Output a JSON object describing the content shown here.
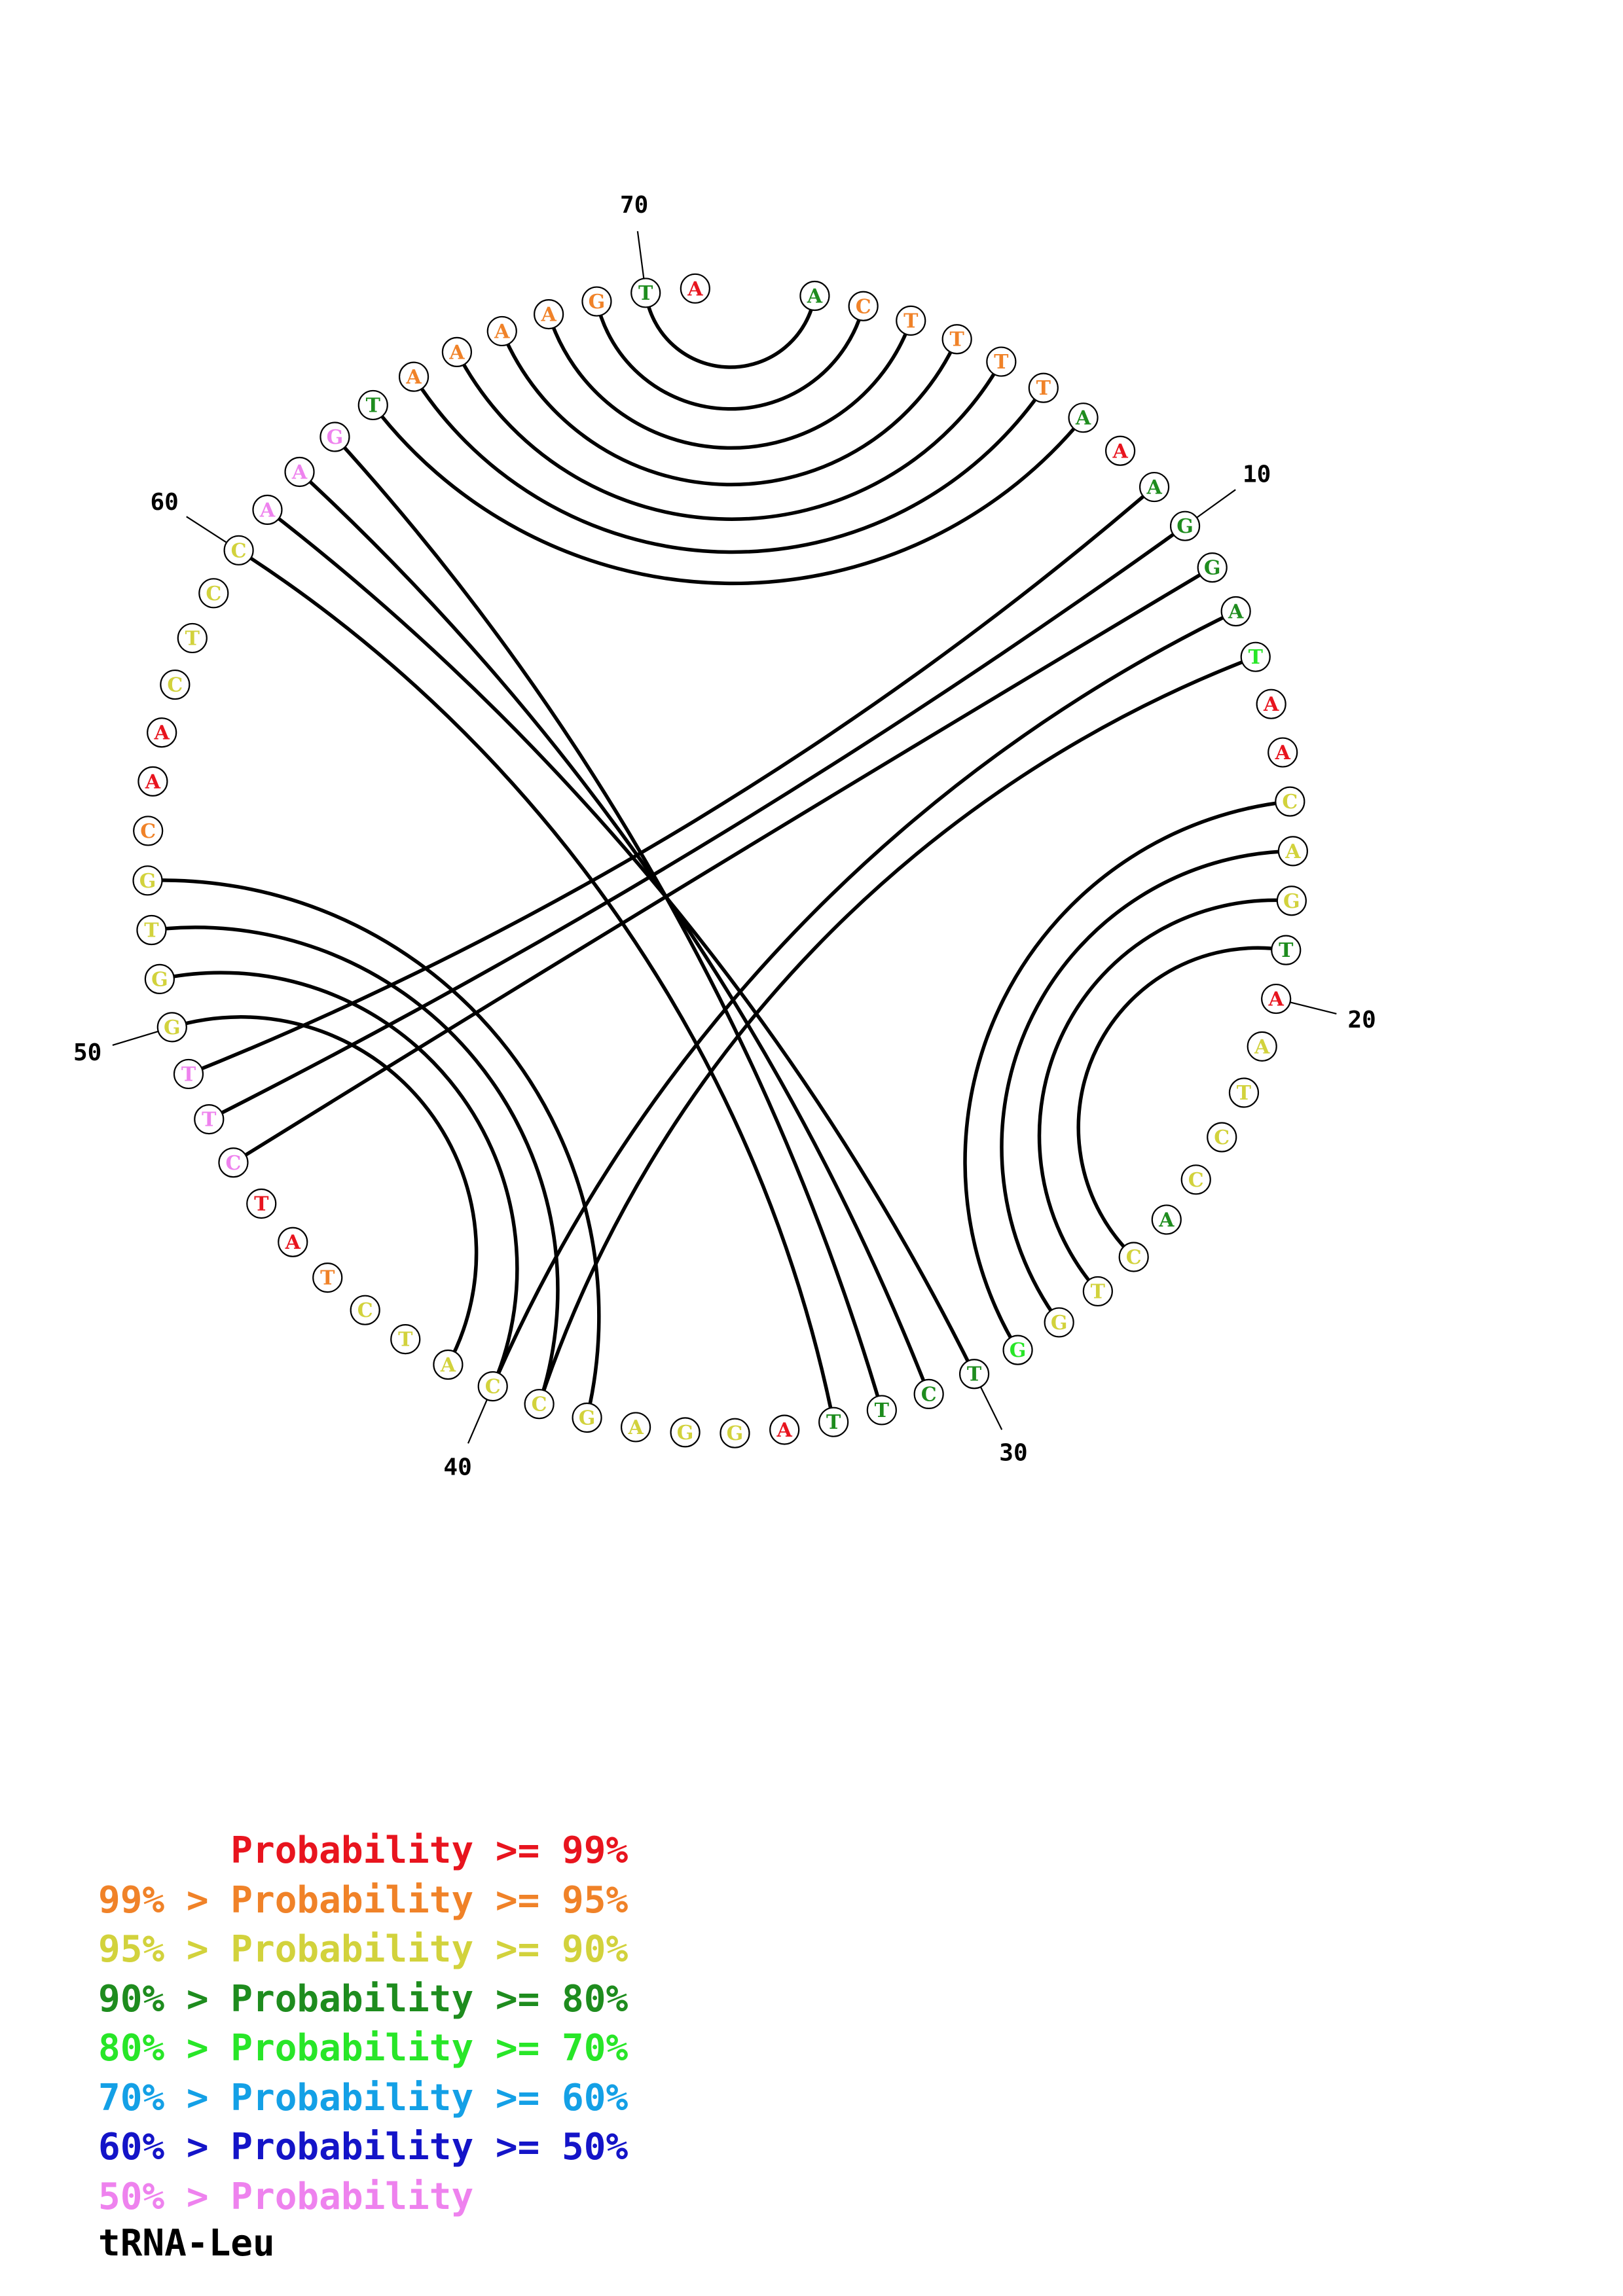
{
  "title": "tRNA-Leu",
  "colors": {
    "red": "#e8141e",
    "orange": "#f08228",
    "yellow": "#d2d23c",
    "darkgreen": "#1e8c1e",
    "green": "#28e628",
    "skyblue": "#14a0e6",
    "blue": "#1414c8",
    "pink": "#ee82ee"
  },
  "sequence": [
    {
      "i": 1,
      "base": "A",
      "color": "darkgreen"
    },
    {
      "i": 2,
      "base": "C",
      "color": "orange"
    },
    {
      "i": 3,
      "base": "T",
      "color": "orange"
    },
    {
      "i": 4,
      "base": "T",
      "color": "orange"
    },
    {
      "i": 5,
      "base": "T",
      "color": "orange"
    },
    {
      "i": 6,
      "base": "T",
      "color": "orange"
    },
    {
      "i": 7,
      "base": "A",
      "color": "darkgreen"
    },
    {
      "i": 8,
      "base": "A",
      "color": "red"
    },
    {
      "i": 9,
      "base": "A",
      "color": "darkgreen"
    },
    {
      "i": 10,
      "base": "G",
      "color": "darkgreen"
    },
    {
      "i": 11,
      "base": "G",
      "color": "darkgreen"
    },
    {
      "i": 12,
      "base": "A",
      "color": "darkgreen"
    },
    {
      "i": 13,
      "base": "T",
      "color": "green"
    },
    {
      "i": 14,
      "base": "A",
      "color": "red"
    },
    {
      "i": 15,
      "base": "A",
      "color": "red"
    },
    {
      "i": 16,
      "base": "C",
      "color": "yellow"
    },
    {
      "i": 17,
      "base": "A",
      "color": "yellow"
    },
    {
      "i": 18,
      "base": "G",
      "color": "yellow"
    },
    {
      "i": 19,
      "base": "T",
      "color": "darkgreen"
    },
    {
      "i": 20,
      "base": "A",
      "color": "red"
    },
    {
      "i": 21,
      "base": "A",
      "color": "yellow"
    },
    {
      "i": 22,
      "base": "T",
      "color": "yellow"
    },
    {
      "i": 23,
      "base": "C",
      "color": "yellow"
    },
    {
      "i": 24,
      "base": "C",
      "color": "yellow"
    },
    {
      "i": 25,
      "base": "A",
      "color": "darkgreen"
    },
    {
      "i": 26,
      "base": "C",
      "color": "yellow"
    },
    {
      "i": 27,
      "base": "T",
      "color": "yellow"
    },
    {
      "i": 28,
      "base": "G",
      "color": "yellow"
    },
    {
      "i": 29,
      "base": "G",
      "color": "green"
    },
    {
      "i": 30,
      "base": "T",
      "color": "darkgreen"
    },
    {
      "i": 31,
      "base": "C",
      "color": "darkgreen"
    },
    {
      "i": 32,
      "base": "T",
      "color": "darkgreen"
    },
    {
      "i": 33,
      "base": "T",
      "color": "darkgreen"
    },
    {
      "i": 34,
      "base": "A",
      "color": "red"
    },
    {
      "i": 35,
      "base": "G",
      "color": "yellow"
    },
    {
      "i": 36,
      "base": "G",
      "color": "yellow"
    },
    {
      "i": 37,
      "base": "A",
      "color": "yellow"
    },
    {
      "i": 38,
      "base": "G",
      "color": "yellow"
    },
    {
      "i": 39,
      "base": "C",
      "color": "yellow"
    },
    {
      "i": 40,
      "base": "C",
      "color": "yellow"
    },
    {
      "i": 41,
      "base": "A",
      "color": "yellow"
    },
    {
      "i": 42,
      "base": "T",
      "color": "yellow"
    },
    {
      "i": 43,
      "base": "C",
      "color": "yellow"
    },
    {
      "i": 44,
      "base": "T",
      "color": "orange"
    },
    {
      "i": 45,
      "base": "A",
      "color": "red"
    },
    {
      "i": 46,
      "base": "T",
      "color": "red"
    },
    {
      "i": 47,
      "base": "C",
      "color": "pink"
    },
    {
      "i": 48,
      "base": "T",
      "color": "pink"
    },
    {
      "i": 49,
      "base": "T",
      "color": "pink"
    },
    {
      "i": 50,
      "base": "G",
      "color": "yellow"
    },
    {
      "i": 51,
      "base": "G",
      "color": "yellow"
    },
    {
      "i": 52,
      "base": "T",
      "color": "yellow"
    },
    {
      "i": 53,
      "base": "G",
      "color": "yellow"
    },
    {
      "i": 54,
      "base": "C",
      "color": "orange"
    },
    {
      "i": 55,
      "base": "A",
      "color": "red"
    },
    {
      "i": 56,
      "base": "A",
      "color": "red"
    },
    {
      "i": 57,
      "base": "C",
      "color": "yellow"
    },
    {
      "i": 58,
      "base": "T",
      "color": "yellow"
    },
    {
      "i": 59,
      "base": "C",
      "color": "yellow"
    },
    {
      "i": 60,
      "base": "C",
      "color": "yellow"
    },
    {
      "i": 61,
      "base": "A",
      "color": "pink"
    },
    {
      "i": 62,
      "base": "A",
      "color": "pink"
    },
    {
      "i": 63,
      "base": "G",
      "color": "pink"
    },
    {
      "i": 64,
      "base": "T",
      "color": "darkgreen"
    },
    {
      "i": 65,
      "base": "A",
      "color": "orange"
    },
    {
      "i": 66,
      "base": "A",
      "color": "orange"
    },
    {
      "i": 67,
      "base": "A",
      "color": "orange"
    },
    {
      "i": 68,
      "base": "A",
      "color": "orange"
    },
    {
      "i": 69,
      "base": "G",
      "color": "orange"
    },
    {
      "i": 70,
      "base": "T",
      "color": "darkgreen"
    },
    {
      "i": 71,
      "base": "A",
      "color": "red"
    }
  ],
  "pairs": [
    [
      1,
      70
    ],
    [
      2,
      69
    ],
    [
      3,
      68
    ],
    [
      4,
      67
    ],
    [
      5,
      66
    ],
    [
      6,
      65
    ],
    [
      7,
      64
    ],
    [
      9,
      49
    ],
    [
      10,
      48
    ],
    [
      11,
      47
    ],
    [
      12,
      40
    ],
    [
      13,
      39
    ],
    [
      16,
      29
    ],
    [
      17,
      28
    ],
    [
      18,
      27
    ],
    [
      19,
      26
    ],
    [
      30,
      61
    ],
    [
      31,
      62
    ],
    [
      32,
      63
    ],
    [
      33,
      60
    ],
    [
      38,
      53
    ],
    [
      39,
      52
    ],
    [
      40,
      51
    ],
    [
      41,
      50
    ]
  ],
  "position_labels": [
    "10",
    "20",
    "30",
    "40",
    "50",
    "60",
    "70"
  ],
  "legend": [
    {
      "text": "      Probability >= 99%",
      "color": "red"
    },
    {
      "text": "99% > Probability >= 95%",
      "color": "orange"
    },
    {
      "text": "95% > Probability >= 90%",
      "color": "yellow"
    },
    {
      "text": "90% > Probability >= 80%",
      "color": "darkgreen"
    },
    {
      "text": "80% > Probability >= 70%",
      "color": "green"
    },
    {
      "text": "70% > Probability >= 60%",
      "color": "skyblue"
    },
    {
      "text": "60% > Probability >= 50%",
      "color": "blue"
    },
    {
      "text": "50% > Probability",
      "color": "pink"
    }
  ]
}
